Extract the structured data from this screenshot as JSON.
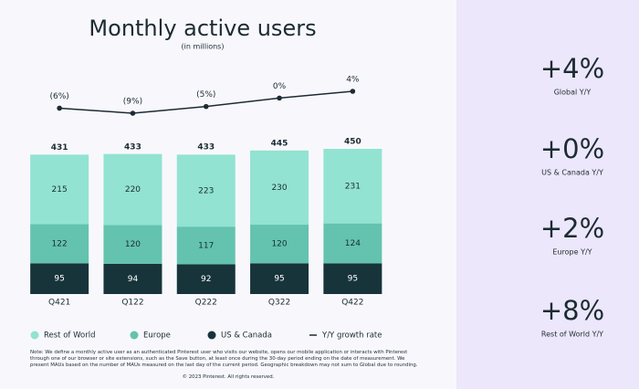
{
  "chart_data": {
    "type": "bar",
    "stacked": true,
    "title": "Monthly active users",
    "subtitle": "(in millions)",
    "categories": [
      "Q421",
      "Q122",
      "Q222",
      "Q322",
      "Q422"
    ],
    "series": [
      {
        "name": "US & Canada",
        "color": "#17343b",
        "label_color": "#ffffff",
        "values": [
          95,
          94,
          92,
          95,
          95
        ]
      },
      {
        "name": "Europe",
        "color": "#63c3ae",
        "label_color": "#1c2b33",
        "values": [
          122,
          120,
          117,
          120,
          124
        ]
      },
      {
        "name": "Rest of World",
        "color": "#92e3d2",
        "label_color": "#1c2b33",
        "values": [
          215,
          220,
          223,
          230,
          231
        ]
      },
      {
        "name": "Y/Y growth rate",
        "type": "line",
        "color": "#1c2b33",
        "values": [
          -6,
          -9,
          -5,
          0,
          4
        ],
        "value_labels": [
          "(6%)",
          "(9%)",
          "(5%)",
          "0%",
          "4%"
        ]
      }
    ],
    "totals": [
      431,
      433,
      433,
      445,
      450
    ]
  },
  "side_panel": [
    {
      "value": "+4%",
      "label": "Global Y/Y"
    },
    {
      "value": "+0%",
      "label": "US & Canada Y/Y"
    },
    {
      "value": "+2%",
      "label": "Europe Y/Y"
    },
    {
      "value": "+8%",
      "label": "Rest of World Y/Y"
    }
  ],
  "footnote": "Note: We define a monthly active user as an authenticated Pinterest user who visits our website, opens our mobile application or interacts with Pinterest through one of our browser or site extensions, such as the Save button, at least once during the 30-day period ending on the date of measurement. We present MAUs based on the number of MAUs measured on the last day of the current period. Geographic breakdown may not sum to Global due to rounding.",
  "copyright": "© 2023 Pinterest. All rights reserved."
}
